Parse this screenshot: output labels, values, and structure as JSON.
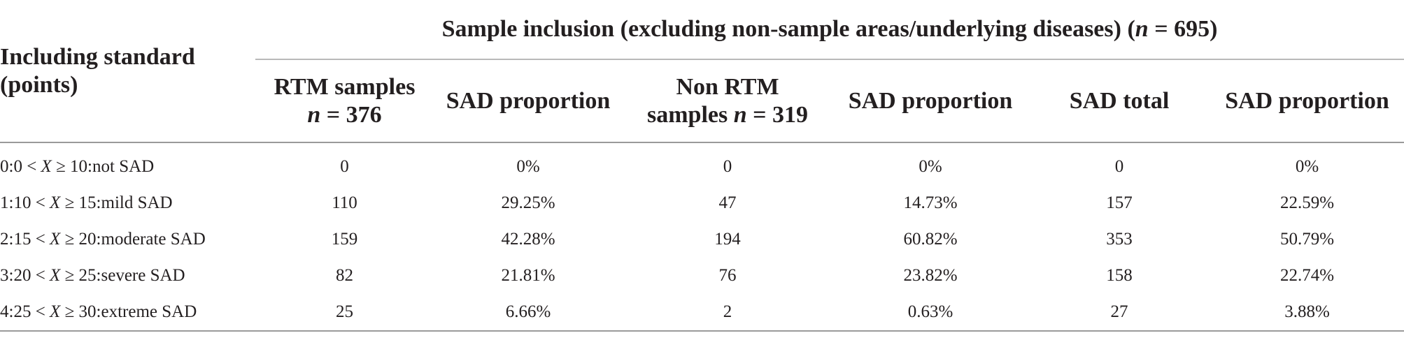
{
  "table": {
    "stub_header_line1": "Including standard",
    "stub_header_line2": "(points)",
    "group_header_prefix": "Sample inclusion (excluding non-sample areas/underlying diseases) (",
    "group_header_n": "n",
    "group_header_suffix": " = 695)",
    "columns": [
      {
        "line1": "RTM samples",
        "n_label": "n",
        "n_value": " = 376"
      },
      {
        "line1": "SAD proportion"
      },
      {
        "line1": "Non RTM",
        "line2_prefix": "samples ",
        "n_label": "n",
        "n_value": " = 319"
      },
      {
        "line1": "SAD proportion"
      },
      {
        "line1": "SAD total"
      },
      {
        "line1": "SAD proportion"
      }
    ],
    "rows": [
      {
        "prefix": "0:0 < ",
        "var": "X",
        "suffix": " ≥ 10:not SAD",
        "cells": [
          "0",
          "0%",
          "0",
          "0%",
          "0",
          "0%"
        ]
      },
      {
        "prefix": "1:10 < ",
        "var": "X",
        "suffix": " ≥ 15:mild SAD",
        "cells": [
          "110",
          "29.25%",
          "47",
          "14.73%",
          "157",
          "22.59%"
        ]
      },
      {
        "prefix": "2:15 < ",
        "var": "X",
        "suffix": " ≥ 20:moderate SAD",
        "cells": [
          "159",
          "42.28%",
          "194",
          "60.82%",
          "353",
          "50.79%"
        ]
      },
      {
        "prefix": "3:20 < ",
        "var": "X",
        "suffix": " ≥ 25:severe SAD",
        "cells": [
          "82",
          "21.81%",
          "76",
          "23.82%",
          "158",
          "22.74%"
        ]
      },
      {
        "prefix": "4:25 < ",
        "var": "X",
        "suffix": " ≥ 30:extreme SAD",
        "cells": [
          "25",
          "6.66%",
          "2",
          "0.63%",
          "27",
          "3.88%"
        ]
      }
    ]
  }
}
